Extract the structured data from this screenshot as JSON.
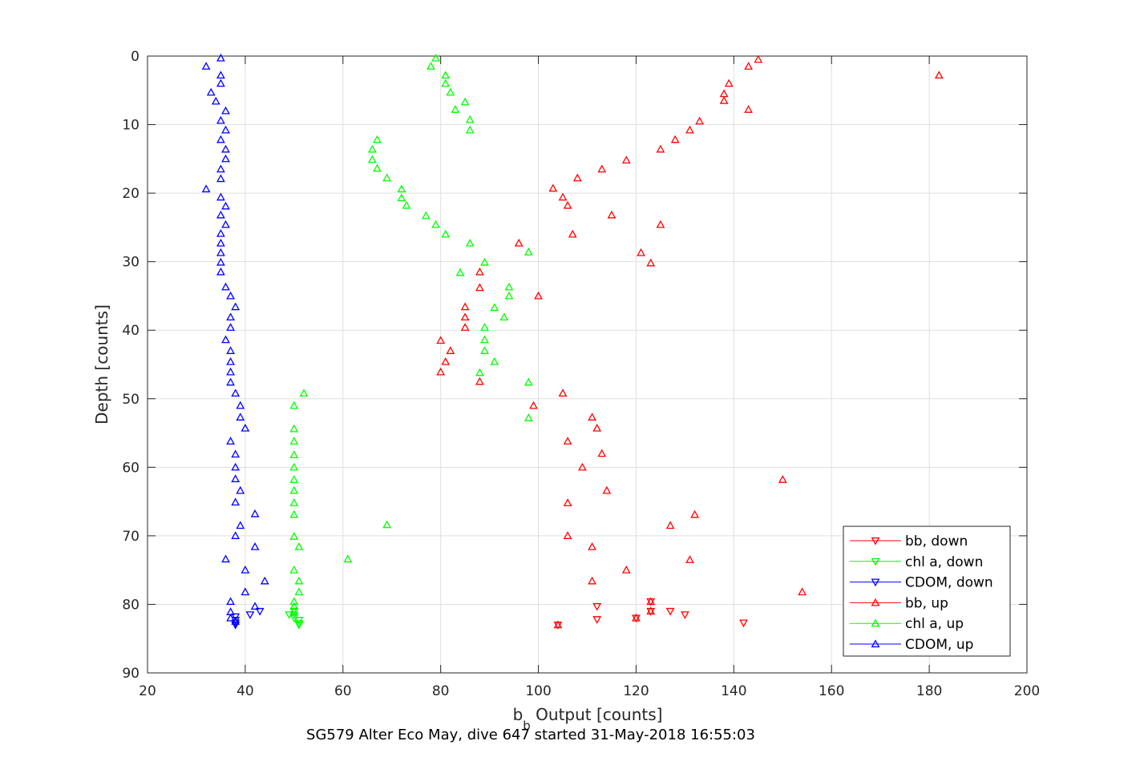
{
  "caption": "SG579 Alter Eco May, dive 647 started 31-May-2018 16:55:03",
  "chart_data": {
    "type": "scatter",
    "xlabel_main": "b",
    "xlabel_sub": "b",
    "xlabel_rest": " Output [counts]",
    "ylabel": "Depth [counts]",
    "xlim": [
      20,
      200
    ],
    "ylim": [
      0,
      90
    ],
    "y_reversed": true,
    "grid": true,
    "legend_position": "bottom-right",
    "xticks": [
      "20",
      "40",
      "60",
      "80",
      "100",
      "120",
      "140",
      "160",
      "180",
      "200"
    ],
    "yticks": [
      "0",
      "10",
      "20",
      "30",
      "40",
      "50",
      "60",
      "70",
      "80",
      "90"
    ],
    "series": [
      {
        "name": "bb, down",
        "color": "#ff0000",
        "marker": "triangle-down",
        "points": [
          [
            104,
            83
          ],
          [
            112,
            82.2
          ],
          [
            120,
            82
          ],
          [
            127,
            81
          ],
          [
            130,
            81.5
          ],
          [
            142,
            82.7
          ],
          [
            123,
            81
          ],
          [
            123,
            79.6
          ],
          [
            112,
            80.3
          ]
        ]
      },
      {
        "name": "chl a, down",
        "color": "#00ff00",
        "marker": "triangle-down",
        "points": [
          [
            49,
            81.5
          ],
          [
            50,
            81
          ],
          [
            50,
            81.5
          ],
          [
            50,
            82
          ],
          [
            51,
            82.3
          ],
          [
            51,
            82.8
          ],
          [
            51,
            83
          ]
        ]
      },
      {
        "name": "CDOM, down",
        "color": "#0000ff",
        "marker": "triangle-down",
        "points": [
          [
            38,
            83
          ],
          [
            38,
            82.7
          ],
          [
            38,
            82.3
          ],
          [
            38,
            81.8
          ],
          [
            41,
            81.5
          ],
          [
            43,
            81
          ]
        ]
      },
      {
        "name": "bb, up",
        "color": "#ff0000",
        "marker": "triangle-up",
        "points": [
          [
            145,
            0.5
          ],
          [
            143,
            1.5
          ],
          [
            182,
            2.8
          ],
          [
            139,
            4
          ],
          [
            138,
            5.5
          ],
          [
            138,
            6.5
          ],
          [
            143,
            7.8
          ],
          [
            133,
            9.5
          ],
          [
            131,
            10.8
          ],
          [
            128,
            12.2
          ],
          [
            125,
            13.6
          ],
          [
            118,
            15.2
          ],
          [
            113,
            16.5
          ],
          [
            108,
            17.8
          ],
          [
            103,
            19.3
          ],
          [
            105,
            20.6
          ],
          [
            106,
            21.8
          ],
          [
            115,
            23.2
          ],
          [
            125,
            24.6
          ],
          [
            107,
            26
          ],
          [
            96,
            27.3
          ],
          [
            121,
            28.7
          ],
          [
            123,
            30.2
          ],
          [
            88,
            31.5
          ],
          [
            88,
            33.8
          ],
          [
            100,
            35
          ],
          [
            85,
            36.6
          ],
          [
            85,
            38.1
          ],
          [
            85,
            39.6
          ],
          [
            80,
            41.5
          ],
          [
            82,
            43
          ],
          [
            81,
            44.6
          ],
          [
            80,
            46.1
          ],
          [
            88,
            47.5
          ],
          [
            105,
            49.2
          ],
          [
            99,
            51
          ],
          [
            111,
            52.7
          ],
          [
            112,
            54.3
          ],
          [
            106,
            56.2
          ],
          [
            113,
            58
          ],
          [
            109,
            60
          ],
          [
            150,
            61.8
          ],
          [
            114,
            63.4
          ],
          [
            106,
            65.2
          ],
          [
            132,
            66.9
          ],
          [
            127,
            68.5
          ],
          [
            106,
            70
          ],
          [
            111,
            71.6
          ],
          [
            131,
            73.5
          ],
          [
            118,
            75
          ],
          [
            111,
            76.6
          ],
          [
            154,
            78.2
          ],
          [
            123,
            79.6
          ],
          [
            123,
            81
          ],
          [
            120,
            82
          ],
          [
            104,
            83
          ]
        ]
      },
      {
        "name": "chl a, up",
        "color": "#00ff00",
        "marker": "triangle-up",
        "points": [
          [
            79,
            0.3
          ],
          [
            78,
            1.5
          ],
          [
            81,
            2.8
          ],
          [
            81,
            4
          ],
          [
            82,
            5.3
          ],
          [
            85,
            6.7
          ],
          [
            83,
            7.8
          ],
          [
            86,
            9.3
          ],
          [
            86,
            10.8
          ],
          [
            67,
            12.2
          ],
          [
            66,
            13.6
          ],
          [
            66,
            15.1
          ],
          [
            67,
            16.4
          ],
          [
            69,
            17.8
          ],
          [
            72,
            19.4
          ],
          [
            72,
            20.7
          ],
          [
            73,
            21.8
          ],
          [
            77,
            23.3
          ],
          [
            79,
            24.6
          ],
          [
            81,
            26
          ],
          [
            86,
            27.3
          ],
          [
            98,
            28.6
          ],
          [
            89,
            30.1
          ],
          [
            84,
            31.6
          ],
          [
            94,
            33.7
          ],
          [
            94,
            35
          ],
          [
            91,
            36.7
          ],
          [
            93,
            38.1
          ],
          [
            89,
            39.6
          ],
          [
            89,
            41.4
          ],
          [
            89,
            43
          ],
          [
            91,
            44.6
          ],
          [
            88,
            46.2
          ],
          [
            98,
            47.6
          ],
          [
            52,
            49.2
          ],
          [
            50,
            51
          ],
          [
            98,
            52.8
          ],
          [
            50,
            54.4
          ],
          [
            50,
            56.2
          ],
          [
            50,
            58.2
          ],
          [
            50,
            60
          ],
          [
            50,
            61.8
          ],
          [
            50,
            63.4
          ],
          [
            50,
            65.2
          ],
          [
            50,
            66.9
          ],
          [
            69,
            68.4
          ],
          [
            50,
            70.1
          ],
          [
            51,
            71.6
          ],
          [
            61,
            73.4
          ],
          [
            50,
            75
          ],
          [
            51,
            76.6
          ],
          [
            51,
            78.2
          ],
          [
            50,
            79.6
          ],
          [
            50,
            80.3
          ],
          [
            50,
            81
          ]
        ]
      },
      {
        "name": "CDOM, up",
        "color": "#0000ff",
        "marker": "triangle-up",
        "points": [
          [
            35,
            0.3
          ],
          [
            32,
            1.5
          ],
          [
            35,
            2.8
          ],
          [
            35,
            4
          ],
          [
            33,
            5.3
          ],
          [
            34,
            6.6
          ],
          [
            36,
            8
          ],
          [
            35,
            9.4
          ],
          [
            36,
            10.8
          ],
          [
            35,
            12.2
          ],
          [
            36,
            13.6
          ],
          [
            36,
            15
          ],
          [
            35,
            16.5
          ],
          [
            35,
            17.9
          ],
          [
            32,
            19.4
          ],
          [
            35,
            20.6
          ],
          [
            36,
            21.9
          ],
          [
            35,
            23.2
          ],
          [
            36,
            24.6
          ],
          [
            35,
            25.9
          ],
          [
            35,
            27.3
          ],
          [
            35,
            28.7
          ],
          [
            35,
            30.1
          ],
          [
            35,
            31.5
          ],
          [
            36,
            33.7
          ],
          [
            37,
            35
          ],
          [
            38,
            36.6
          ],
          [
            37,
            38.1
          ],
          [
            37,
            39.6
          ],
          [
            36,
            41.4
          ],
          [
            37,
            43
          ],
          [
            37,
            44.6
          ],
          [
            37,
            46.1
          ],
          [
            37,
            47.6
          ],
          [
            38,
            49.2
          ],
          [
            39,
            51
          ],
          [
            39,
            52.7
          ],
          [
            40,
            54.3
          ],
          [
            37,
            56.2
          ],
          [
            38,
            58.1
          ],
          [
            38,
            60
          ],
          [
            38,
            61.7
          ],
          [
            39,
            63.4
          ],
          [
            38,
            65.1
          ],
          [
            42,
            66.8
          ],
          [
            39,
            68.5
          ],
          [
            38,
            70
          ],
          [
            42,
            71.6
          ],
          [
            36,
            73.4
          ],
          [
            40,
            75
          ],
          [
            44,
            76.6
          ],
          [
            40,
            78.2
          ],
          [
            37,
            79.6
          ],
          [
            42,
            80.3
          ],
          [
            37,
            81.1
          ],
          [
            37,
            82
          ],
          [
            38,
            82.5
          ]
        ]
      }
    ]
  }
}
